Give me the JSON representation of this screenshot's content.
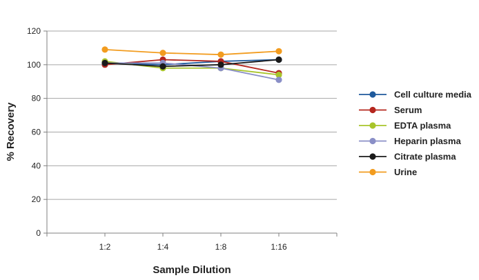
{
  "chart_data": {
    "type": "line",
    "title": "",
    "xlabel": "Sample Dilution",
    "ylabel": "% Recovery",
    "categories": [
      "1:2",
      "1:4",
      "1:8",
      "1:16"
    ],
    "ylim": [
      0,
      120
    ],
    "yticks": [
      0,
      20,
      40,
      60,
      80,
      100,
      120
    ],
    "grid": true,
    "legend_position": "right",
    "series": [
      {
        "name": "Cell culture media",
        "color": "#1f5a9c",
        "values": [
          101,
          100,
          102,
          103
        ]
      },
      {
        "name": "Serum",
        "color": "#b5261e",
        "values": [
          100,
          103,
          102,
          95
        ]
      },
      {
        "name": "EDTA plasma",
        "color": "#a8c42a",
        "values": [
          102,
          98,
          98,
          94
        ]
      },
      {
        "name": "Heparin plasma",
        "color": "#8a8fc7",
        "values": [
          101,
          101,
          98,
          91
        ]
      },
      {
        "name": "Citrate plasma",
        "color": "#1a1a1a",
        "values": [
          101,
          99,
          100,
          103
        ]
      },
      {
        "name": "Urine",
        "color": "#f29c1f",
        "values": [
          109,
          107,
          106,
          108
        ]
      }
    ]
  }
}
